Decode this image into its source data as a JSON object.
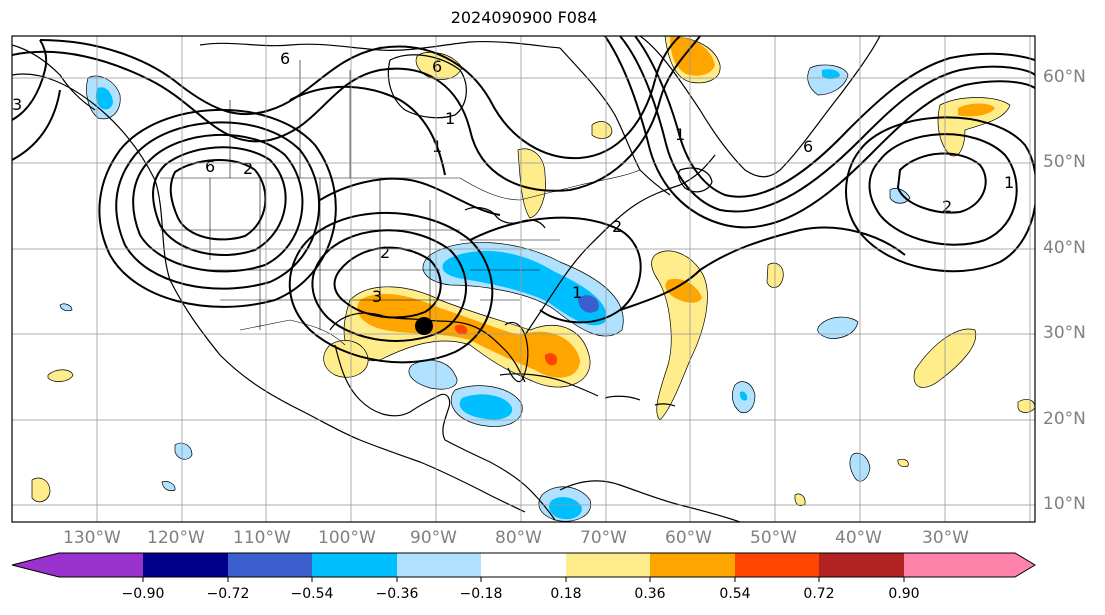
{
  "title": "2024090900 F084",
  "lon_labels": [
    "130°W",
    "120°W",
    "110°W",
    "100°W",
    "90°W",
    "80°W",
    "70°W",
    "60°W",
    "50°W",
    "40°W",
    "30°W"
  ],
  "lat_labels": [
    "60°N",
    "50°N",
    "40°N",
    "30°N",
    "20°N",
    "10°N"
  ],
  "contour_labels": [
    "6",
    "6",
    "6",
    "6",
    "2",
    "2",
    "2",
    "1",
    "1",
    "1",
    "3",
    "3",
    "1",
    "2",
    "1"
  ],
  "colorbar": {
    "tick_labels": [
      "−0.90",
      "−0.72",
      "−0.54",
      "−0.36",
      "−0.18",
      "0.18",
      "0.36",
      "0.54",
      "0.72",
      "0.90"
    ],
    "colors": [
      "#9a32cd",
      "#00008b",
      "#3a5fcd",
      "#00bfff",
      "#b0e2ff",
      "#ffffff",
      "#ffec8b",
      "#ffa500",
      "#ff4500",
      "#b22222",
      "#ff82ab"
    ]
  },
  "marker": {
    "label": ""
  }
}
